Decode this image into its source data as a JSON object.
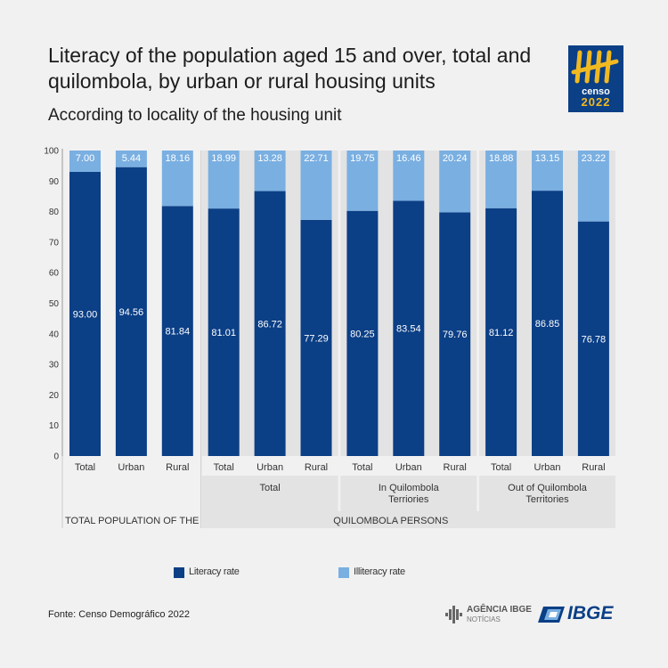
{
  "header": {
    "title": "Literacy of the population aged 15 and over, total and quilombola, by urban or rural housing units",
    "subtitle": "According to locality of the housing unit"
  },
  "logo": {
    "icon": "censo-tally-icon",
    "line1": "censo",
    "line2": "2022"
  },
  "chart_data": {
    "type": "bar",
    "stacked": true,
    "ylim": [
      0,
      100
    ],
    "yticks": [
      0,
      10,
      20,
      30,
      40,
      50,
      60,
      70,
      80,
      90,
      100
    ],
    "categories": [
      "Total",
      "Urban",
      "Rural",
      "Total",
      "Urban",
      "Rural",
      "Total",
      "Urban",
      "Rural",
      "Total",
      "Urban",
      "Rural"
    ],
    "series": [
      {
        "name": "Literacy rate",
        "color": "#0b3f86",
        "values": [
          93.0,
          94.56,
          81.84,
          81.01,
          86.72,
          77.29,
          80.25,
          83.54,
          79.76,
          81.12,
          86.85,
          76.78
        ]
      },
      {
        "name": "Illiteracy rate",
        "color": "#7aafe1",
        "values": [
          7.0,
          5.44,
          18.16,
          18.99,
          13.28,
          22.71,
          19.75,
          16.46,
          20.24,
          18.88,
          13.15,
          23.22
        ]
      }
    ],
    "value_labels": [
      [
        "93.00",
        "94.56",
        "81.84",
        "81.01",
        "86.72",
        "77.29",
        "80.25",
        "83.54",
        "79.76",
        "81.12",
        "86.85",
        "76.78"
      ],
      [
        "7.00",
        "5.44",
        "18.16",
        "18.99",
        "13.28",
        "22.71",
        "19.75",
        "16.46",
        "20.24",
        "18.88",
        "13.15",
        "23.22"
      ]
    ],
    "subgroups": [
      {
        "label": "",
        "start": 0,
        "end": 2
      },
      {
        "label": "Total",
        "start": 3,
        "end": 5
      },
      {
        "label": "In Quilombola\nTerriories",
        "start": 6,
        "end": 8
      },
      {
        "label": "Out of Quilombola\nTerritories",
        "start": 9,
        "end": 11
      }
    ],
    "groups": [
      {
        "label": "TOTAL POPULATION OF THE COUNTRY",
        "start": 0,
        "end": 2
      },
      {
        "label": "QUILOMBOLA PERSONS",
        "start": 3,
        "end": 11
      }
    ],
    "legend_position": "bottom"
  },
  "legend": {
    "literacy": {
      "label": "Literacy rate",
      "color": "#0b3f86"
    },
    "illiteracy": {
      "label": "Illiteracy rate",
      "color": "#7aafe1"
    }
  },
  "footer": {
    "source": "Fonte: Censo Demográfico 2022",
    "agencia_name": "AGÊNCIA IBGE",
    "agencia_sub": "NOTÍCIAS",
    "ibge": "IBGE"
  }
}
